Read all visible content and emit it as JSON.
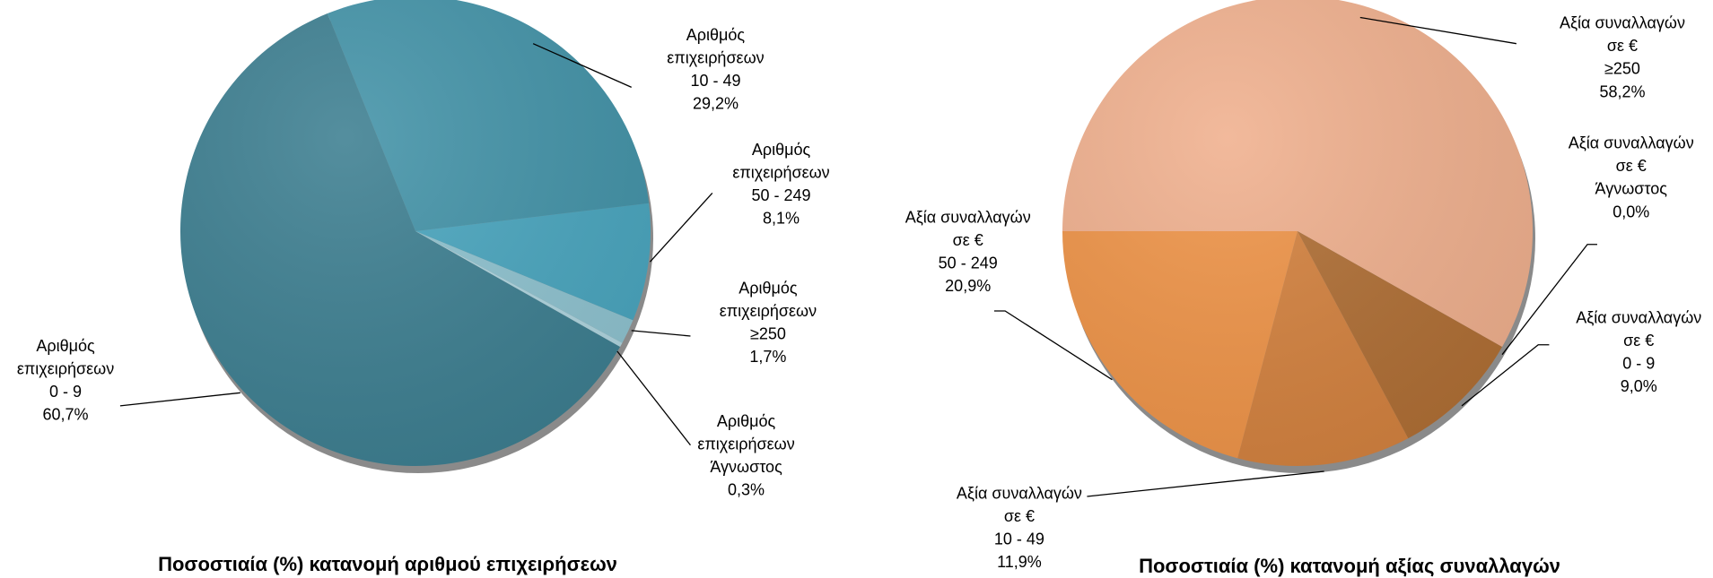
{
  "chart_data": [
    {
      "type": "pie",
      "title": "Ποσοστιαία (%) κατανομή αριθμού επιχειρήσεων",
      "label_lines": [
        "Αριθμός",
        "επιχειρήσεων"
      ],
      "categories": [
        "0 - 9",
        "10 - 49",
        "50 - 249",
        "≥250",
        "Άγνωστος"
      ],
      "values": [
        60.7,
        29.2,
        8.1,
        1.7,
        0.3
      ],
      "value_labels": [
        "60,7%",
        "29,2%",
        "8,1%",
        "1,7%",
        "0,3%"
      ],
      "colors": [
        "#3d7f91",
        "#4393a8",
        "#4aa6bf",
        "#8fc3d0",
        "#b0d6e0"
      ]
    },
    {
      "type": "pie",
      "title": "Ποσοστιαία (%) κατανομή αξίας συναλλαγών",
      "label_lines": [
        "Αξία συναλλαγών",
        "σε €"
      ],
      "categories": [
        "≥250",
        "Άγνωστος",
        "0 - 9",
        "10 - 49",
        "50 - 249"
      ],
      "values": [
        58.2,
        0.0,
        9.0,
        11.9,
        20.9
      ],
      "value_labels": [
        "58,2%",
        "0,0%",
        "9,0%",
        "11,9%",
        "20,9%"
      ],
      "colors": [
        "#f0b08e",
        "#f6c8a8",
        "#b06f35",
        "#d4823f",
        "#ef9448"
      ]
    }
  ]
}
